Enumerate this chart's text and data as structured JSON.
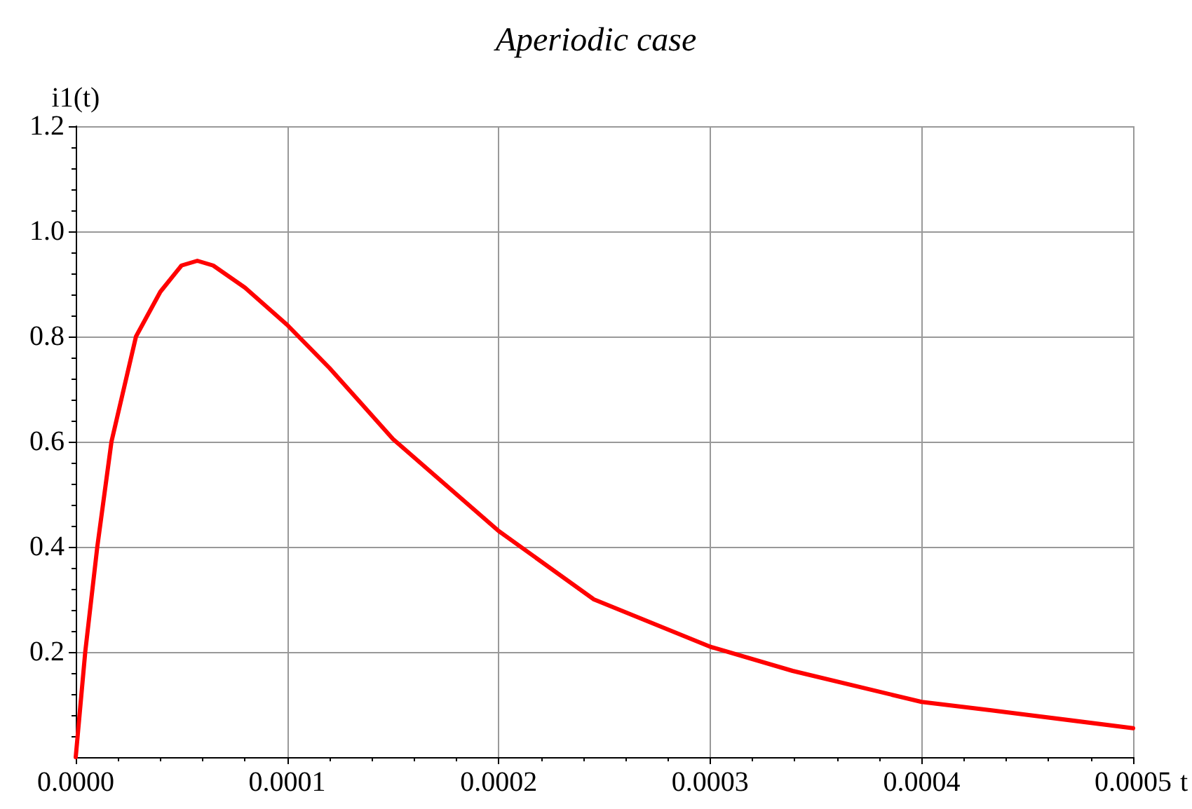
{
  "chart_data": {
    "type": "line",
    "title": "Aperiodic case",
    "xlabel": "t",
    "ylabel": "i1(t)",
    "x": [
      0,
      4.5e-06,
      1.02e-05,
      1.69e-05,
      2.85e-05,
      4e-05,
      5e-05,
      5.75e-05,
      6.5e-05,
      8e-05,
      0.0001,
      0.00012,
      0.00015,
      0.0002,
      0.000245,
      0.0003,
      0.000339,
      0.0004,
      0.000433,
      0.0005
    ],
    "series": [
      {
        "color": "#ff0000",
        "values": [
          0,
          0.2,
          0.4,
          0.6,
          0.8,
          0.885,
          0.935,
          0.944,
          0.935,
          0.893,
          0.822,
          0.74,
          0.605,
          0.43,
          0.3,
          0.21,
          0.164,
          0.105,
          0.089,
          0.055
        ]
      }
    ],
    "xlim": [
      0,
      0.0005
    ],
    "xticks": [
      {
        "value": 0,
        "label": "0.0000"
      },
      {
        "value": 0.0001,
        "label": "0.0001"
      },
      {
        "value": 0.0002,
        "label": "0.0002"
      },
      {
        "value": 0.0003,
        "label": "0.0003"
      },
      {
        "value": 0.0004,
        "label": "0.0004"
      },
      {
        "value": 0.0005,
        "label": "0.0005"
      }
    ],
    "ylim": [
      0,
      1.2
    ],
    "yticks": [
      {
        "value": 0.2,
        "label": "0.2"
      },
      {
        "value": 0.4,
        "label": "0.4"
      },
      {
        "value": 0.6,
        "label": "0.6"
      },
      {
        "value": 0.8,
        "label": "0.8"
      },
      {
        "value": 1,
        "label": "1.0"
      },
      {
        "value": 1.2,
        "label": "1.2"
      }
    ],
    "grid": true,
    "marker": "none",
    "line_style": "solid"
  }
}
